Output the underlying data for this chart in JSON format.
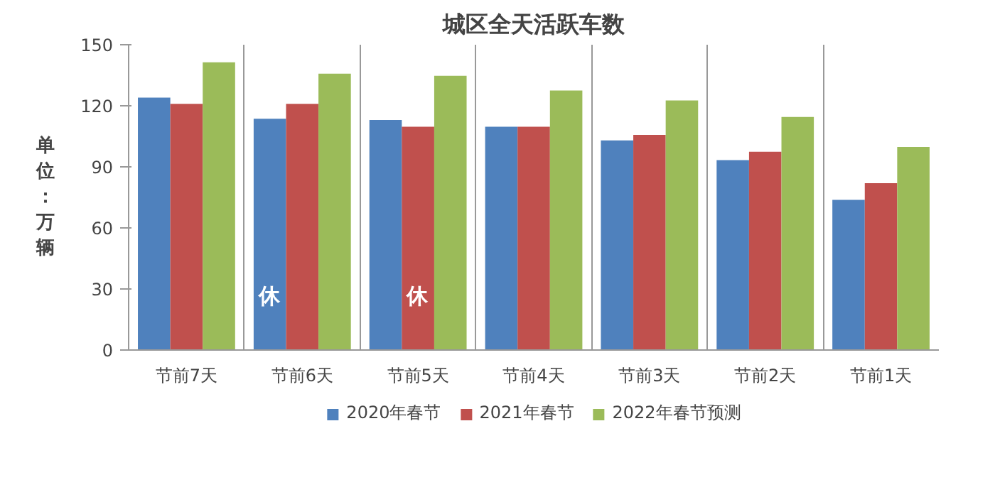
{
  "chart_data": {
    "type": "bar",
    "title": "城区全天活跃车数",
    "ylabel": "单位：万辆",
    "categories": [
      "节前7天",
      "节前6天",
      "节前5天",
      "节前4天",
      "节前3天",
      "节前2天",
      "节前1天"
    ],
    "series": [
      {
        "name": "2020年春节",
        "color": "#4f81bd",
        "values": [
          124,
          113.6,
          113,
          109.7,
          103,
          93.3,
          73.8
        ]
      },
      {
        "name": "2021年春节",
        "color": "#c0504d",
        "values": [
          121,
          121,
          109.7,
          109.7,
          105.7,
          97.4,
          82
        ]
      },
      {
        "name": "2022年春节预测",
        "color": "#9bbb59",
        "values": [
          141.4,
          135.8,
          134.7,
          127.5,
          122.6,
          114.5,
          99.8
        ]
      }
    ],
    "ylim": [
      0,
      150
    ],
    "yticks": [
      0,
      30,
      60,
      90,
      120,
      150
    ],
    "grid": "x",
    "legend": "bottom",
    "annotations": [
      "休",
      "休"
    ]
  }
}
